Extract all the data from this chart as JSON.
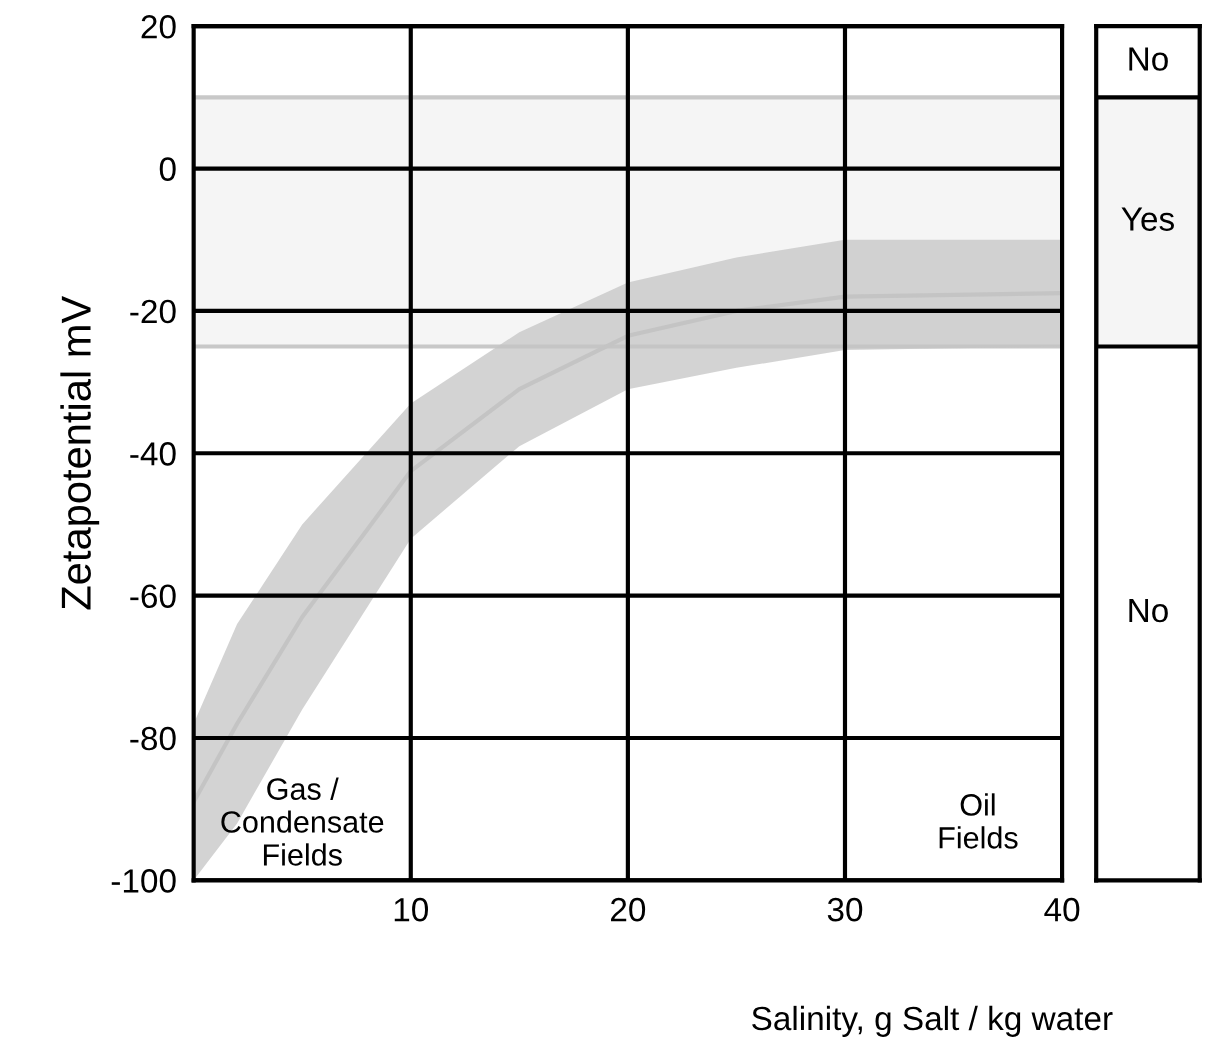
{
  "chart_data": {
    "type": "line",
    "xlabel": "Salinity, g Salt / kg water",
    "ylabel": "Zetapotential mV",
    "x": [
      0,
      2,
      5,
      10,
      15,
      20,
      25,
      30,
      40
    ],
    "series": [
      {
        "color": "#c4c4c4",
        "values": [
          -89,
          -78,
          -63,
          -42.5,
          -31,
          -23.5,
          -20,
          -18,
          -17.5
        ],
        "upper": [
          -78,
          -64,
          -50,
          -33,
          -23,
          -16,
          -12.5,
          -10,
          -10
        ],
        "lower": [
          -100,
          -92,
          -76,
          -52,
          -39,
          -31,
          -28,
          -25.5,
          -25
        ]
      }
    ],
    "xlim": [
      0,
      40
    ],
    "xticks": [
      10,
      20,
      30,
      40
    ],
    "ylim": [
      -100,
      20
    ],
    "yticks": [
      -100,
      -80,
      -60,
      -40,
      -20,
      0,
      20
    ],
    "grid": true,
    "bands": [
      {
        "axis": "y",
        "from": -25,
        "to": 10,
        "label": "Yes",
        "color": "#f5f5f5"
      }
    ],
    "ref_lines": [
      {
        "axis": "y",
        "value": 10,
        "color": "#c8c8c8"
      },
      {
        "axis": "y",
        "value": -25,
        "color": "#c8c8c8"
      }
    ],
    "annotations": [
      "Gas /\nCondensate\nFields",
      "Oil\nFields",
      "No",
      "No"
    ]
  }
}
